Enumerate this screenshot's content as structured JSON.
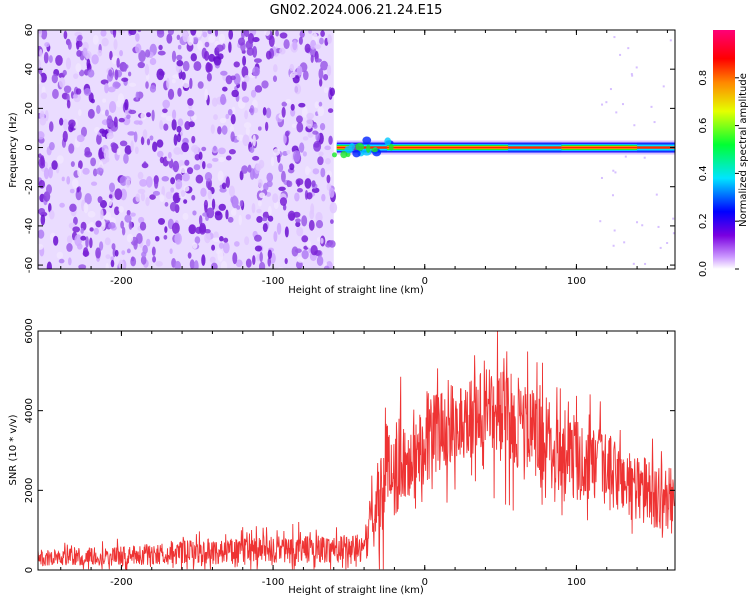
{
  "title": "GN02.2024.006.21.24.E15",
  "chart_data": [
    {
      "type": "heatmap",
      "xlabel": "Height of straight line (km)",
      "ylabel": "Frequency (Hz)",
      "xlim": [
        -255,
        165
      ],
      "ylim": [
        -62,
        60
      ],
      "xticks": [
        -200,
        -100,
        0,
        100
      ],
      "yticks": [
        -60,
        -40,
        -20,
        0,
        20,
        40,
        60
      ],
      "colorbar": {
        "label": "Normalized spectral amplitude",
        "ticks": [
          "0.0",
          "0.2",
          "0.4",
          "0.6",
          "0.8"
        ],
        "range": [
          0,
          1
        ],
        "colormap": "rainbow (white-purple-blue-cyan-green-yellow-orange-red-magenta)"
      },
      "noise_region_x": [
        -255,
        -60
      ],
      "signal_band": {
        "center_freq_hz": 0,
        "half_width_hz": 2,
        "x_range": [
          -58,
          165
        ],
        "peak_amplitude": 0.8,
        "weak_segments_x": [
          [
            -45,
            -25
          ],
          [
            55,
            90
          ],
          [
            140,
            165
          ]
        ]
      }
    },
    {
      "type": "line",
      "xlabel": "Height of straight line (km)",
      "ylabel": "SNR (10 * v/v)",
      "xlim": [
        -255,
        165
      ],
      "ylim": [
        0,
        6000
      ],
      "xticks": [
        -200,
        -100,
        0,
        100
      ],
      "yticks": [
        0,
        2000,
        4000,
        6000
      ],
      "series_color": "#ee3333",
      "envelope": [
        {
          "x": -255,
          "mean": 300,
          "spread": 300
        },
        {
          "x": -200,
          "mean": 350,
          "spread": 350
        },
        {
          "x": -150,
          "mean": 450,
          "spread": 450
        },
        {
          "x": -100,
          "mean": 500,
          "spread": 500
        },
        {
          "x": -40,
          "mean": 550,
          "spread": 500
        },
        {
          "x": -35,
          "mean": 1200,
          "spread": 1200
        },
        {
          "x": -25,
          "mean": 2500,
          "spread": 1800
        },
        {
          "x": -10,
          "mean": 2800,
          "spread": 1600
        },
        {
          "x": 0,
          "mean": 3300,
          "spread": 1600
        },
        {
          "x": 20,
          "mean": 3700,
          "spread": 1400
        },
        {
          "x": 40,
          "mean": 4000,
          "spread": 1500
        },
        {
          "x": 50,
          "mean": 3900,
          "spread": 1700
        },
        {
          "x": 70,
          "mean": 3500,
          "spread": 1600
        },
        {
          "x": 100,
          "mean": 2800,
          "spread": 1500
        },
        {
          "x": 130,
          "mean": 2300,
          "spread": 1300
        },
        {
          "x": 150,
          "mean": 1900,
          "spread": 1200
        },
        {
          "x": 165,
          "mean": 1700,
          "spread": 1200
        }
      ],
      "peak": {
        "x": 48,
        "y": 6000
      }
    }
  ]
}
